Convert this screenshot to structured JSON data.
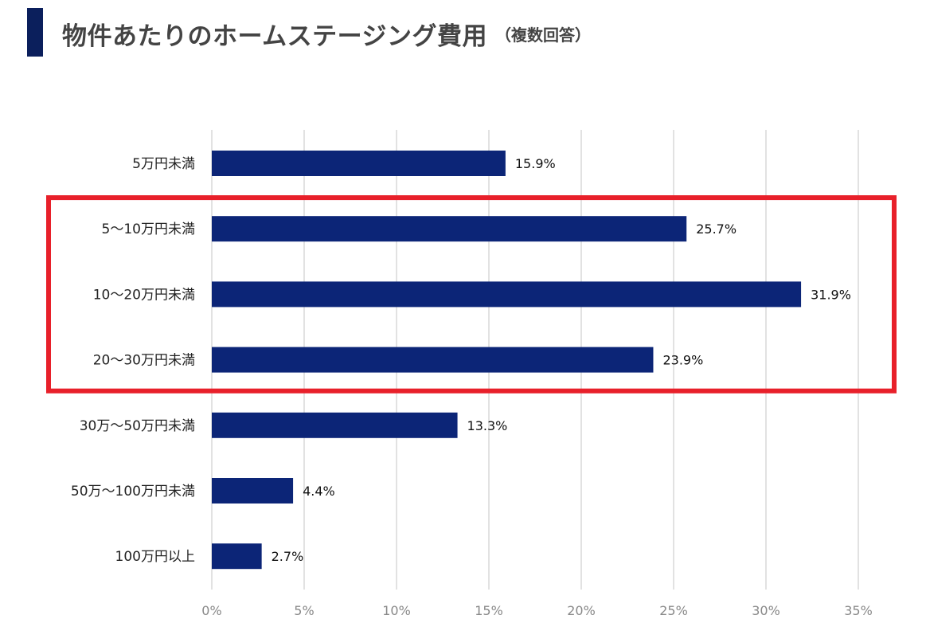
{
  "header": {
    "title": "物件あたりのホームステージング費用",
    "subtitle": "（複数回答）"
  },
  "colors": {
    "bar": "#0c2577",
    "highlight": "#e8202a",
    "grid": "#d9d9d9",
    "header_accent": "#0b1f5c"
  },
  "chart_data": {
    "type": "bar",
    "orientation": "horizontal",
    "categories": [
      "5万円未満",
      "5～10万円未満",
      "10～20万円未満",
      "20～30万円未満",
      "30万～50万円未満",
      "50万～100万円未満",
      "100万円以上"
    ],
    "values": [
      15.9,
      25.7,
      31.9,
      23.9,
      13.3,
      4.4,
      2.7
    ],
    "value_labels": [
      "15.9%",
      "25.7%",
      "31.9%",
      "23.9%",
      "13.3%",
      "4.4%",
      "2.7%"
    ],
    "xlim": [
      0,
      35
    ],
    "xticks": [
      0,
      5,
      10,
      15,
      20,
      25,
      30,
      35
    ],
    "xtick_labels": [
      "0%",
      "5%",
      "10%",
      "15%",
      "20%",
      "25%",
      "30%",
      "35%"
    ],
    "grid": true,
    "highlighted_categories": [
      "5～10万円未満",
      "10～20万円未満",
      "20～30万円未満"
    ]
  }
}
